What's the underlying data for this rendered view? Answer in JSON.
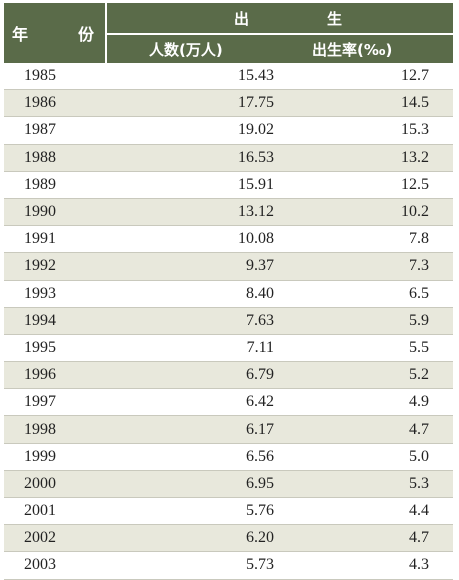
{
  "header": {
    "year_label_left": "年",
    "year_label_right": "份",
    "group_label_left": "出",
    "group_label_right": "生",
    "births_label": "人数(万人)",
    "rate_label": "出生率(‰)"
  },
  "rows": [
    {
      "year": "1985",
      "births": "15.43",
      "rate": "12.7"
    },
    {
      "year": "1986",
      "births": "17.75",
      "rate": "14.5"
    },
    {
      "year": "1987",
      "births": "19.02",
      "rate": "15.3"
    },
    {
      "year": "1988",
      "births": "16.53",
      "rate": "13.2"
    },
    {
      "year": "1989",
      "births": "15.91",
      "rate": "12.5"
    },
    {
      "year": "1990",
      "births": "13.12",
      "rate": "10.2"
    },
    {
      "year": "1991",
      "births": "10.08",
      "rate": "7.8"
    },
    {
      "year": "1992",
      "births": "9.37",
      "rate": "7.3"
    },
    {
      "year": "1993",
      "births": "8.40",
      "rate": "6.5"
    },
    {
      "year": "1994",
      "births": "7.63",
      "rate": "5.9"
    },
    {
      "year": "1995",
      "births": "7.11",
      "rate": "5.5"
    },
    {
      "year": "1996",
      "births": "6.79",
      "rate": "5.2"
    },
    {
      "year": "1997",
      "births": "6.42",
      "rate": "4.9"
    },
    {
      "year": "1998",
      "births": "6.17",
      "rate": "4.7"
    },
    {
      "year": "1999",
      "births": "6.56",
      "rate": "5.0"
    },
    {
      "year": "2000",
      "births": "6.95",
      "rate": "5.3"
    },
    {
      "year": "2001",
      "births": "5.76",
      "rate": "4.4"
    },
    {
      "year": "2002",
      "births": "6.20",
      "rate": "4.7"
    },
    {
      "year": "2003",
      "births": "5.73",
      "rate": "4.3"
    }
  ]
}
